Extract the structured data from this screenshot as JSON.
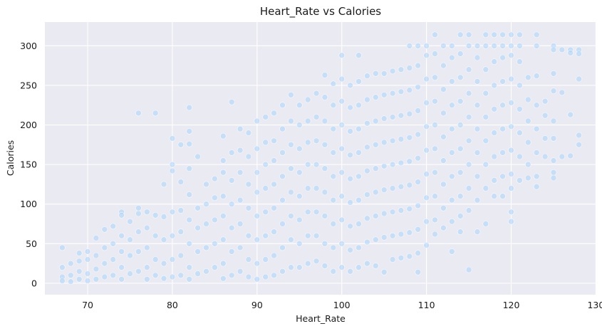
{
  "chart_data": {
    "type": "scatter",
    "title": "Heart_Rate vs Calories",
    "xlabel": "Heart_Rate",
    "ylabel": "Calories",
    "xlim": [
      64.95,
      130.05
    ],
    "ylim": [
      -14.5,
      330
    ],
    "xticks": [
      70,
      80,
      90,
      100,
      110,
      120,
      130
    ],
    "yticks": [
      0,
      50,
      100,
      150,
      200,
      250,
      300
    ],
    "grid": true,
    "marker_color": "#a9d4fb",
    "background_color": "#eaeaf2",
    "points": [
      [
        67,
        45
      ],
      [
        67,
        20
      ],
      [
        67,
        8
      ],
      [
        67,
        3
      ],
      [
        68,
        25
      ],
      [
        68,
        10
      ],
      [
        68,
        2
      ],
      [
        69,
        38
      ],
      [
        69,
        28
      ],
      [
        69,
        15
      ],
      [
        69,
        5
      ],
      [
        70,
        40
      ],
      [
        70,
        30
      ],
      [
        70,
        12
      ],
      [
        70,
        3
      ],
      [
        71,
        57
      ],
      [
        71,
        35
      ],
      [
        71,
        18
      ],
      [
        71,
        5
      ],
      [
        72,
        68
      ],
      [
        72,
        45
      ],
      [
        72,
        25
      ],
      [
        72,
        8
      ],
      [
        73,
        72
      ],
      [
        73,
        50
      ],
      [
        73,
        30
      ],
      [
        73,
        10
      ],
      [
        74,
        90
      ],
      [
        74,
        86
      ],
      [
        74,
        60
      ],
      [
        74,
        40
      ],
      [
        74,
        20
      ],
      [
        74,
        5
      ],
      [
        75,
        78
      ],
      [
        75,
        55
      ],
      [
        75,
        35
      ],
      [
        75,
        12
      ],
      [
        76,
        215
      ],
      [
        76,
        95
      ],
      [
        76,
        88
      ],
      [
        76,
        65
      ],
      [
        76,
        40
      ],
      [
        76,
        15
      ],
      [
        77,
        90
      ],
      [
        77,
        70
      ],
      [
        77,
        45
      ],
      [
        77,
        20
      ],
      [
        77,
        5
      ],
      [
        78,
        215
      ],
      [
        78,
        86
      ],
      [
        78,
        60
      ],
      [
        78,
        30
      ],
      [
        78,
        10
      ],
      [
        79,
        125
      ],
      [
        79,
        84
      ],
      [
        79,
        55
      ],
      [
        79,
        25
      ],
      [
        79,
        6
      ],
      [
        80,
        183
      ],
      [
        80,
        150
      ],
      [
        80,
        142
      ],
      [
        80,
        90
      ],
      [
        80,
        60
      ],
      [
        80,
        30
      ],
      [
        80,
        8
      ],
      [
        81,
        175
      ],
      [
        81,
        128
      ],
      [
        81,
        92
      ],
      [
        81,
        65
      ],
      [
        81,
        35
      ],
      [
        81,
        10
      ],
      [
        82,
        222
      ],
      [
        82,
        192
      ],
      [
        82,
        176
      ],
      [
        82,
        145
      ],
      [
        82,
        112
      ],
      [
        82,
        80
      ],
      [
        82,
        50
      ],
      [
        82,
        20
      ],
      [
        82,
        5
      ],
      [
        83,
        160
      ],
      [
        83,
        95
      ],
      [
        83,
        70
      ],
      [
        83,
        40
      ],
      [
        83,
        12
      ],
      [
        84,
        125
      ],
      [
        84,
        100
      ],
      [
        84,
        75
      ],
      [
        84,
        45
      ],
      [
        84,
        15
      ],
      [
        85,
        132
      ],
      [
        85,
        108
      ],
      [
        85,
        80
      ],
      [
        85,
        50
      ],
      [
        85,
        20
      ],
      [
        86,
        186
      ],
      [
        86,
        155
      ],
      [
        86,
        140
      ],
      [
        86,
        110
      ],
      [
        86,
        85
      ],
      [
        86,
        55
      ],
      [
        86,
        25
      ],
      [
        86,
        6
      ],
      [
        87,
        229
      ],
      [
        87,
        165
      ],
      [
        87,
        130
      ],
      [
        87,
        100
      ],
      [
        87,
        70
      ],
      [
        87,
        40
      ],
      [
        87,
        10
      ],
      [
        88,
        195
      ],
      [
        88,
        168
      ],
      [
        88,
        140
      ],
      [
        88,
        105
      ],
      [
        88,
        75
      ],
      [
        88,
        45
      ],
      [
        88,
        15
      ],
      [
        89,
        190
      ],
      [
        89,
        160
      ],
      [
        89,
        125
      ],
      [
        89,
        95
      ],
      [
        89,
        60
      ],
      [
        89,
        30
      ],
      [
        89,
        8
      ],
      [
        90,
        205
      ],
      [
        90,
        170
      ],
      [
        90,
        140
      ],
      [
        90,
        115
      ],
      [
        90,
        85
      ],
      [
        90,
        55
      ],
      [
        90,
        25
      ],
      [
        90,
        5
      ],
      [
        91,
        210
      ],
      [
        91,
        178
      ],
      [
        91,
        150
      ],
      [
        91,
        120
      ],
      [
        91,
        90
      ],
      [
        91,
        60
      ],
      [
        91,
        30
      ],
      [
        91,
        8
      ],
      [
        92,
        215
      ],
      [
        92,
        180
      ],
      [
        92,
        155
      ],
      [
        92,
        125
      ],
      [
        92,
        95
      ],
      [
        92,
        65
      ],
      [
        92,
        35
      ],
      [
        92,
        10
      ],
      [
        93,
        225
      ],
      [
        93,
        195
      ],
      [
        93,
        165
      ],
      [
        93,
        135
      ],
      [
        93,
        105
      ],
      [
        93,
        75
      ],
      [
        93,
        45
      ],
      [
        93,
        15
      ],
      [
        94,
        238
      ],
      [
        94,
        205
      ],
      [
        94,
        175
      ],
      [
        94,
        145
      ],
      [
        94,
        115
      ],
      [
        94,
        85
      ],
      [
        94,
        55
      ],
      [
        94,
        20
      ],
      [
        95,
        225
      ],
      [
        95,
        200
      ],
      [
        95,
        170
      ],
      [
        95,
        140
      ],
      [
        95,
        110
      ],
      [
        95,
        80
      ],
      [
        95,
        50
      ],
      [
        95,
        20
      ],
      [
        96,
        232
      ],
      [
        96,
        205
      ],
      [
        96,
        178
      ],
      [
        96,
        150
      ],
      [
        96,
        120
      ],
      [
        96,
        90
      ],
      [
        96,
        60
      ],
      [
        96,
        25
      ],
      [
        97,
        240
      ],
      [
        97,
        210
      ],
      [
        97,
        180
      ],
      [
        97,
        150
      ],
      [
        97,
        120
      ],
      [
        97,
        90
      ],
      [
        97,
        60
      ],
      [
        97,
        28
      ],
      [
        98,
        263
      ],
      [
        98,
        235
      ],
      [
        98,
        205
      ],
      [
        98,
        175
      ],
      [
        98,
        145
      ],
      [
        98,
        115
      ],
      [
        98,
        85
      ],
      [
        98,
        50
      ],
      [
        98,
        22
      ],
      [
        99,
        252
      ],
      [
        99,
        225
      ],
      [
        99,
        195
      ],
      [
        99,
        165
      ],
      [
        99,
        135
      ],
      [
        99,
        105
      ],
      [
        99,
        75
      ],
      [
        99,
        45
      ],
      [
        99,
        15
      ],
      [
        100,
        288
      ],
      [
        100,
        258
      ],
      [
        100,
        230
      ],
      [
        100,
        200
      ],
      [
        100,
        170
      ],
      [
        100,
        140
      ],
      [
        100,
        110
      ],
      [
        100,
        80
      ],
      [
        100,
        50
      ],
      [
        100,
        20
      ],
      [
        101,
        250
      ],
      [
        101,
        222
      ],
      [
        101,
        192
      ],
      [
        101,
        162
      ],
      [
        101,
        132
      ],
      [
        101,
        102
      ],
      [
        101,
        72
      ],
      [
        101,
        42
      ],
      [
        101,
        15
      ],
      [
        102,
        288
      ],
      [
        102,
        255
      ],
      [
        102,
        225
      ],
      [
        102,
        195
      ],
      [
        102,
        165
      ],
      [
        102,
        135
      ],
      [
        102,
        105
      ],
      [
        102,
        75
      ],
      [
        102,
        45
      ],
      [
        102,
        20
      ],
      [
        103,
        262
      ],
      [
        103,
        232
      ],
      [
        103,
        202
      ],
      [
        103,
        172
      ],
      [
        103,
        142
      ],
      [
        103,
        112
      ],
      [
        103,
        82
      ],
      [
        103,
        52
      ],
      [
        103,
        25
      ],
      [
        104,
        265
      ],
      [
        104,
        235
      ],
      [
        104,
        205
      ],
      [
        104,
        175
      ],
      [
        104,
        145
      ],
      [
        104,
        115
      ],
      [
        104,
        85
      ],
      [
        104,
        55
      ],
      [
        104,
        22
      ],
      [
        105,
        265
      ],
      [
        105,
        238
      ],
      [
        105,
        208
      ],
      [
        105,
        178
      ],
      [
        105,
        148
      ],
      [
        105,
        118
      ],
      [
        105,
        88
      ],
      [
        105,
        58
      ],
      [
        105,
        14
      ],
      [
        106,
        268
      ],
      [
        106,
        240
      ],
      [
        106,
        210
      ],
      [
        106,
        180
      ],
      [
        106,
        150
      ],
      [
        106,
        120
      ],
      [
        106,
        90
      ],
      [
        106,
        60
      ],
      [
        106,
        30
      ],
      [
        107,
        270
      ],
      [
        107,
        242
      ],
      [
        107,
        212
      ],
      [
        107,
        182
      ],
      [
        107,
        152
      ],
      [
        107,
        122
      ],
      [
        107,
        92
      ],
      [
        107,
        62
      ],
      [
        107,
        32
      ],
      [
        108,
        300
      ],
      [
        108,
        272
      ],
      [
        108,
        244
      ],
      [
        108,
        214
      ],
      [
        108,
        184
      ],
      [
        108,
        154
      ],
      [
        108,
        124
      ],
      [
        108,
        94
      ],
      [
        108,
        64
      ],
      [
        108,
        34
      ],
      [
        109,
        300
      ],
      [
        109,
        275
      ],
      [
        109,
        248
      ],
      [
        109,
        218
      ],
      [
        109,
        188
      ],
      [
        109,
        158
      ],
      [
        109,
        128
      ],
      [
        109,
        98
      ],
      [
        109,
        68
      ],
      [
        109,
        38
      ],
      [
        109,
        14
      ],
      [
        110,
        300
      ],
      [
        110,
        288
      ],
      [
        110,
        258
      ],
      [
        110,
        228
      ],
      [
        110,
        198
      ],
      [
        110,
        168
      ],
      [
        110,
        138
      ],
      [
        110,
        108
      ],
      [
        110,
        78
      ],
      [
        110,
        48
      ],
      [
        111,
        314
      ],
      [
        111,
        290
      ],
      [
        111,
        260
      ],
      [
        111,
        230
      ],
      [
        111,
        200
      ],
      [
        111,
        170
      ],
      [
        111,
        140
      ],
      [
        111,
        110
      ],
      [
        111,
        80
      ],
      [
        111,
        62
      ],
      [
        112,
        300
      ],
      [
        112,
        275
      ],
      [
        112,
        245
      ],
      [
        112,
        215
      ],
      [
        112,
        185
      ],
      [
        112,
        155
      ],
      [
        112,
        125
      ],
      [
        112,
        95
      ],
      [
        112,
        70
      ],
      [
        113,
        300
      ],
      [
        113,
        285
      ],
      [
        113,
        255
      ],
      [
        113,
        225
      ],
      [
        113,
        195
      ],
      [
        113,
        165
      ],
      [
        113,
        135
      ],
      [
        113,
        105
      ],
      [
        113,
        78
      ],
      [
        113,
        40
      ],
      [
        114,
        314
      ],
      [
        114,
        290
      ],
      [
        114,
        260
      ],
      [
        114,
        230
      ],
      [
        114,
        200
      ],
      [
        114,
        170
      ],
      [
        114,
        140
      ],
      [
        114,
        110
      ],
      [
        114,
        85
      ],
      [
        114,
        65
      ],
      [
        115,
        314
      ],
      [
        115,
        300
      ],
      [
        115,
        270
      ],
      [
        115,
        240
      ],
      [
        115,
        210
      ],
      [
        115,
        180
      ],
      [
        115,
        150
      ],
      [
        115,
        120
      ],
      [
        115,
        92
      ],
      [
        115,
        17
      ],
      [
        116,
        300
      ],
      [
        116,
        285
      ],
      [
        116,
        255
      ],
      [
        116,
        225
      ],
      [
        116,
        195
      ],
      [
        116,
        165
      ],
      [
        116,
        135
      ],
      [
        116,
        105
      ],
      [
        116,
        65
      ],
      [
        117,
        314
      ],
      [
        117,
        300
      ],
      [
        117,
        270
      ],
      [
        117,
        240
      ],
      [
        117,
        210
      ],
      [
        117,
        180
      ],
      [
        117,
        150
      ],
      [
        117,
        120
      ],
      [
        117,
        75
      ],
      [
        118,
        314
      ],
      [
        118,
        300
      ],
      [
        118,
        280
      ],
      [
        118,
        250
      ],
      [
        118,
        220
      ],
      [
        118,
        190
      ],
      [
        118,
        160
      ],
      [
        118,
        130
      ],
      [
        118,
        110
      ],
      [
        119,
        314
      ],
      [
        119,
        300
      ],
      [
        119,
        285
      ],
      [
        119,
        255
      ],
      [
        119,
        225
      ],
      [
        119,
        195
      ],
      [
        119,
        165
      ],
      [
        119,
        135
      ],
      [
        119,
        110
      ],
      [
        120,
        314
      ],
      [
        120,
        300
      ],
      [
        120,
        288
      ],
      [
        120,
        258
      ],
      [
        120,
        228
      ],
      [
        120,
        198
      ],
      [
        120,
        168
      ],
      [
        120,
        138
      ],
      [
        120,
        120
      ],
      [
        120,
        90
      ],
      [
        120,
        78
      ],
      [
        121,
        314
      ],
      [
        121,
        300
      ],
      [
        121,
        280
      ],
      [
        121,
        250
      ],
      [
        121,
        220
      ],
      [
        121,
        190
      ],
      [
        121,
        160
      ],
      [
        121,
        130
      ],
      [
        122,
        260
      ],
      [
        122,
        232
      ],
      [
        122,
        205
      ],
      [
        122,
        178
      ],
      [
        122,
        150
      ],
      [
        122,
        133
      ],
      [
        123,
        314
      ],
      [
        123,
        300
      ],
      [
        123,
        262
      ],
      [
        123,
        225
      ],
      [
        123,
        195
      ],
      [
        123,
        165
      ],
      [
        123,
        135
      ],
      [
        123,
        122
      ],
      [
        124,
        230
      ],
      [
        124,
        212
      ],
      [
        124,
        183
      ],
      [
        124,
        160
      ],
      [
        125,
        300
      ],
      [
        125,
        295
      ],
      [
        125,
        265
      ],
      [
        125,
        243
      ],
      [
        125,
        205
      ],
      [
        125,
        183
      ],
      [
        125,
        155
      ],
      [
        125,
        140
      ],
      [
        125,
        133
      ],
      [
        126,
        295
      ],
      [
        126,
        241
      ],
      [
        126,
        160
      ],
      [
        127,
        295
      ],
      [
        127,
        291
      ],
      [
        127,
        213
      ],
      [
        127,
        161
      ],
      [
        128,
        295
      ],
      [
        128,
        290
      ],
      [
        128,
        258
      ],
      [
        128,
        187
      ],
      [
        128,
        175
      ]
    ]
  }
}
